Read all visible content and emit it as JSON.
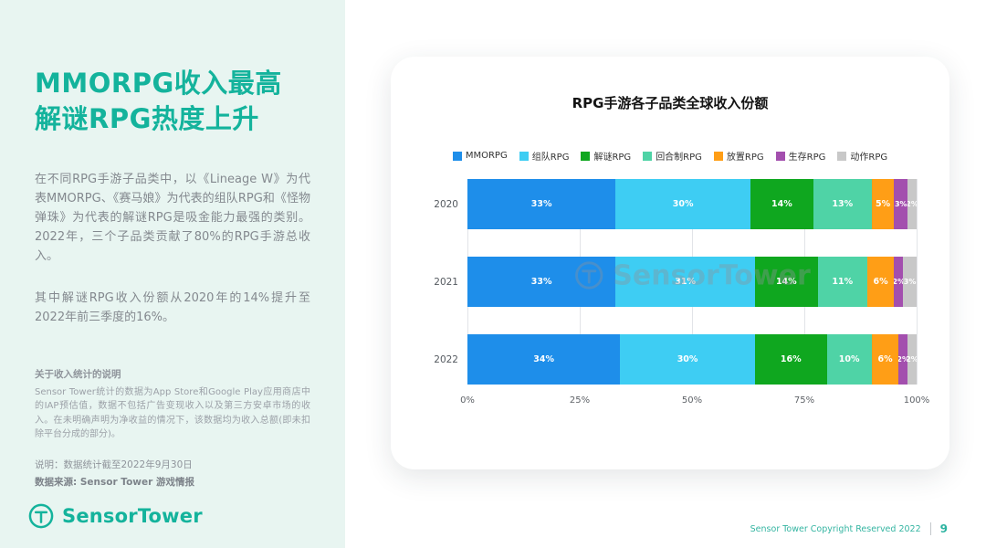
{
  "sidebar": {
    "title_lines": [
      "MMORPG收入最高",
      "解谜RPG热度上升"
    ],
    "para1": "在不同RPG手游子品类中，以《Lineage W》为代表MMORPG、《赛马娘》为代表的组队RPG和《怪物弹珠》为代表的解谜RPG是吸金能力最强的类别。2022年，三个子品类贡献了80%的RPG手游总收入。",
    "para2": "其中解谜RPG收入份额从2020年的14%提升至2022年前三季度的16%。",
    "note_title": "关于收入统计的说明",
    "note_body": "Sensor Tower统计的数据为App Store和Google Play应用商店中的IAP预估值，数据不包括广告变现收入以及第三方安卓市场的收入。在未明确声明为净收益的情况下，该数据均为收入总额(即未扣除平台分成的部分)。",
    "meta_line1": "说明：数据统计截至2022年9月30日",
    "meta_line2": "数据来源: Sensor Tower 游戏情报",
    "logo_text1": "Sensor",
    "logo_text2": "Tower"
  },
  "footer": {
    "copyright": "Sensor Tower Copyright Reserved 2022",
    "page": "9"
  },
  "chart_data": {
    "type": "bar",
    "orientation": "horizontal-stacked",
    "title": "RPG手游各子品类全球收入份额",
    "categories": [
      "2020",
      "2021",
      "2022"
    ],
    "series": [
      {
        "name": "MMORPG",
        "color": "#1e8eea",
        "values": [
          33,
          33,
          34
        ]
      },
      {
        "name": "组队RPG",
        "color": "#3ecdf3",
        "values": [
          30,
          31,
          30
        ]
      },
      {
        "name": "解谜RPG",
        "color": "#0fa71f",
        "values": [
          14,
          14,
          16
        ]
      },
      {
        "name": "回合制RPG",
        "color": "#4fd3a6",
        "values": [
          13,
          11,
          10
        ]
      },
      {
        "name": "放置RPG",
        "color": "#ff9e16",
        "values": [
          5,
          6,
          6
        ]
      },
      {
        "name": "生存RPG",
        "color": "#a34fae",
        "values": [
          3,
          2,
          2
        ]
      },
      {
        "name": "动作RPG",
        "color": "#c8c8c8",
        "values": [
          2,
          3,
          2
        ]
      }
    ],
    "x_ticks": [
      "0%",
      "25%",
      "50%",
      "75%",
      "100%"
    ],
    "xlim": [
      0,
      100
    ],
    "legend_position": "top",
    "grid": true,
    "watermark": "SensorTower"
  }
}
